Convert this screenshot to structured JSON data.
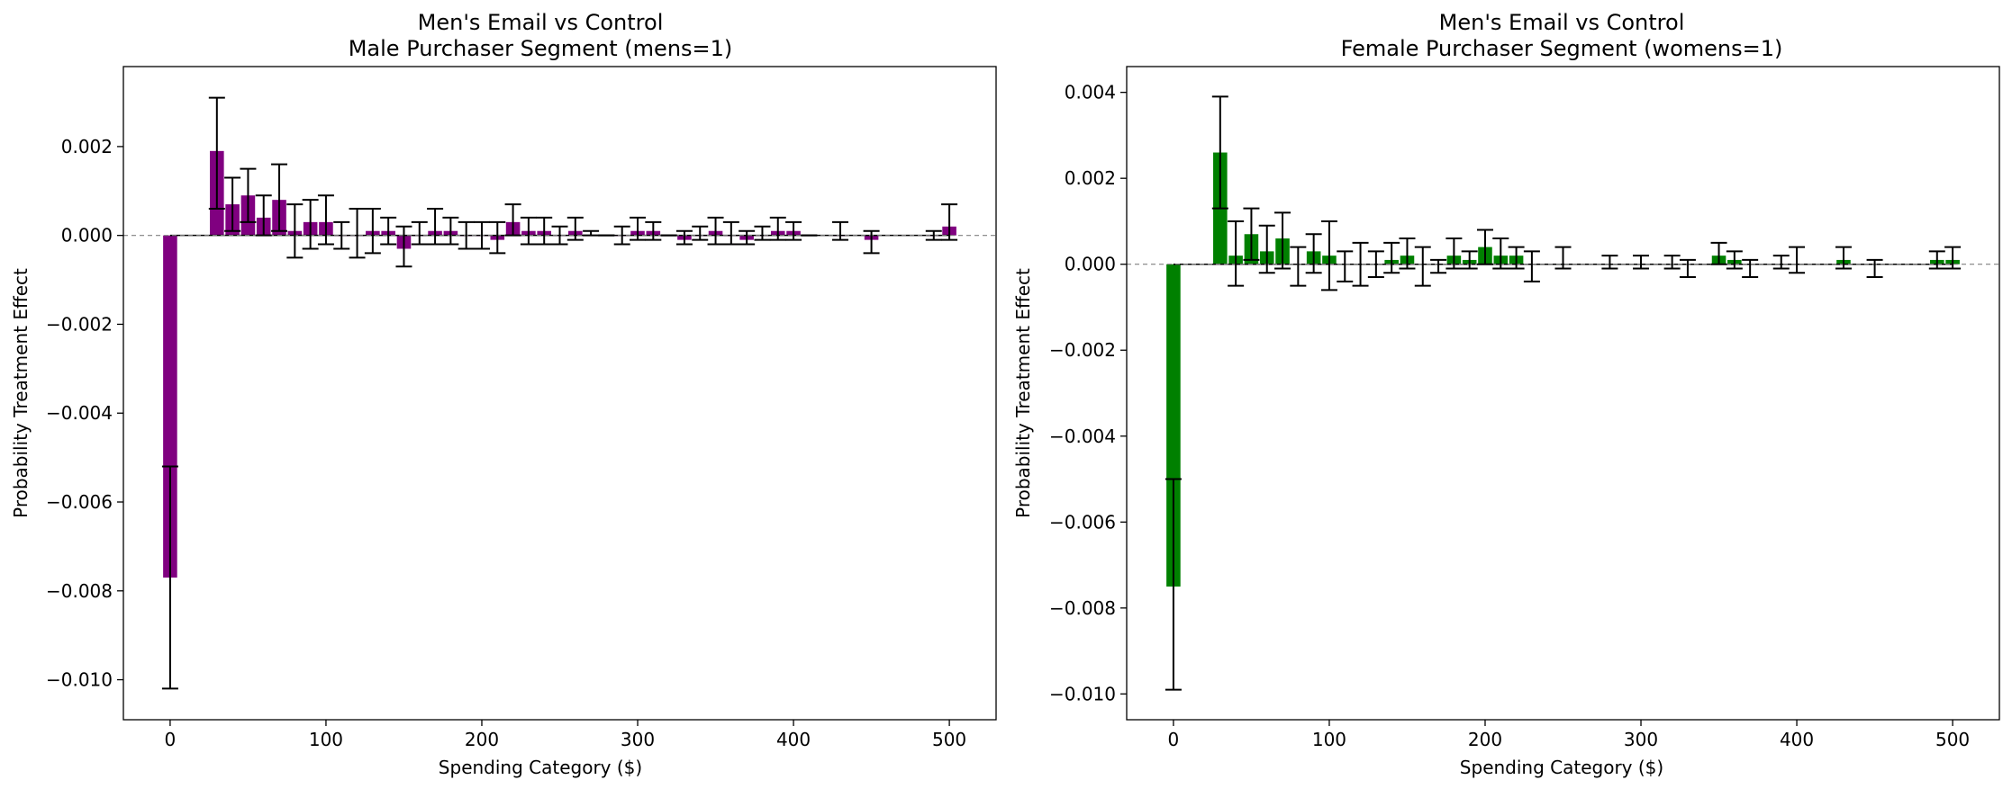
{
  "figure": {
    "background": "#ffffff"
  },
  "chart_data": [
    {
      "type": "bar",
      "title": "Men's Email vs Control",
      "subtitle": "Male Purchaser Segment (mens=1)",
      "xlabel": "Spending Category ($)",
      "ylabel": "Probability Treatment Effect",
      "xlim": [
        -30,
        530
      ],
      "ylim": [
        -0.0109,
        0.0038
      ],
      "xticks": [
        0,
        100,
        200,
        300,
        400,
        500
      ],
      "xtick_labels": [
        "0",
        "100",
        "200",
        "300",
        "400",
        "500"
      ],
      "yticks": [
        -0.01,
        -0.008,
        -0.006,
        -0.004,
        -0.002,
        0.0,
        0.002
      ],
      "ytick_labels": [
        "−0.010",
        "−0.008",
        "−0.006",
        "−0.004",
        "−0.002",
        "0.000",
        "0.002"
      ],
      "bar_width": 9,
      "color": "#800080",
      "zero_line": true,
      "x": [
        0,
        30,
        40,
        50,
        60,
        70,
        80,
        90,
        100,
        110,
        120,
        130,
        140,
        150,
        160,
        170,
        180,
        190,
        200,
        210,
        220,
        230,
        240,
        250,
        260,
        270,
        280,
        290,
        300,
        310,
        320,
        330,
        340,
        350,
        360,
        370,
        380,
        390,
        400,
        410,
        430,
        450,
        490,
        500
      ],
      "values": [
        -0.0077,
        0.0019,
        0.0007,
        0.0009,
        0.0004,
        0.0008,
        0.0001,
        0.0003,
        0.0003,
        0.0,
        0.0,
        0.0001,
        0.0001,
        -0.0003,
        0.0,
        0.0001,
        0.0001,
        0.0,
        0.0,
        -0.0001,
        0.0003,
        0.0001,
        0.0001,
        0.0,
        0.0001,
        0.0,
        0.0,
        0.0,
        0.0001,
        0.0001,
        0.0,
        -0.0001,
        0.0,
        0.0001,
        0.0,
        -0.0001,
        0.0,
        0.0001,
        0.0001,
        0.0,
        0.0,
        -0.0001,
        0.0,
        0.0002
      ],
      "error_low": [
        -0.0102,
        0.0006,
        0.0001,
        0.0003,
        0.0,
        0.0001,
        -0.0005,
        -0.0003,
        -0.0002,
        -0.0003,
        -0.0005,
        -0.0004,
        -0.0002,
        -0.0007,
        -0.0002,
        -0.0002,
        -0.0002,
        -0.0003,
        -0.0003,
        -0.0004,
        0.0,
        -0.0002,
        -0.0002,
        -0.0002,
        -0.0001,
        0.0,
        0.0,
        -0.0002,
        -0.0001,
        -0.0001,
        0.0,
        -0.0002,
        -0.0001,
        -0.0002,
        -0.0002,
        -0.0002,
        -0.0001,
        -0.0001,
        -0.0001,
        0.0,
        -0.0001,
        -0.0004,
        -0.0001,
        -0.0001
      ],
      "error_high": [
        -0.0052,
        0.0031,
        0.0013,
        0.0015,
        0.0009,
        0.0016,
        0.0007,
        0.0008,
        0.0009,
        0.0003,
        0.0006,
        0.0006,
        0.0004,
        0.0002,
        0.0003,
        0.0006,
        0.0004,
        0.0003,
        0.0003,
        0.0003,
        0.0007,
        0.0004,
        0.0004,
        0.0002,
        0.0004,
        0.0001,
        0.0,
        0.0002,
        0.0004,
        0.0003,
        0.0,
        0.0001,
        0.0002,
        0.0004,
        0.0003,
        0.0001,
        0.0002,
        0.0004,
        0.0003,
        0.0,
        0.0003,
        0.0001,
        0.0001,
        0.0007
      ]
    },
    {
      "type": "bar",
      "title": "Men's Email vs Control",
      "subtitle": "Female Purchaser Segment (womens=1)",
      "xlabel": "Spending Category ($)",
      "ylabel": "Probability Treatment Effect",
      "xlim": [
        -30,
        530
      ],
      "ylim": [
        -0.0106,
        0.0046
      ],
      "xticks": [
        0,
        100,
        200,
        300,
        400,
        500
      ],
      "xtick_labels": [
        "0",
        "100",
        "200",
        "300",
        "400",
        "500"
      ],
      "yticks": [
        -0.01,
        -0.008,
        -0.006,
        -0.004,
        -0.002,
        0.0,
        0.002,
        0.004
      ],
      "ytick_labels": [
        "−0.010",
        "−0.008",
        "−0.006",
        "−0.004",
        "−0.002",
        "0.000",
        "0.002",
        "0.004"
      ],
      "bar_width": 9,
      "color": "#008000",
      "zero_line": true,
      "x": [
        0,
        30,
        40,
        50,
        60,
        70,
        80,
        90,
        100,
        110,
        120,
        130,
        140,
        150,
        160,
        170,
        180,
        190,
        200,
        210,
        220,
        230,
        250,
        280,
        300,
        320,
        330,
        350,
        360,
        370,
        390,
        400,
        430,
        450,
        490,
        500
      ],
      "values": [
        -0.0075,
        0.0026,
        0.0002,
        0.0007,
        0.0003,
        0.0006,
        0.0,
        0.0003,
        0.0002,
        0.0,
        0.0,
        0.0,
        0.0001,
        0.0002,
        0.0,
        0.0,
        0.0002,
        0.0001,
        0.0004,
        0.0002,
        0.0002,
        0.0,
        0.0,
        0.0,
        0.0,
        0.0,
        0.0,
        0.0002,
        0.0001,
        0.0,
        0.0,
        0.0,
        0.0001,
        0.0,
        0.0001,
        0.0001
      ],
      "error_low": [
        -0.0099,
        0.0013,
        -0.0005,
        0.0001,
        -0.0002,
        -0.0001,
        -0.0005,
        -0.0002,
        -0.0006,
        -0.0004,
        -0.0005,
        -0.0003,
        -0.0002,
        -0.0001,
        -0.0005,
        -0.0002,
        -0.0001,
        -0.0001,
        0.0,
        -0.0001,
        -0.0001,
        -0.0004,
        -0.0001,
        -0.0001,
        -0.0001,
        -0.0001,
        -0.0003,
        0.0,
        -0.0001,
        -0.0003,
        -0.0001,
        -0.0002,
        -0.0001,
        -0.0003,
        -0.0001,
        -0.0001
      ],
      "error_high": [
        -0.005,
        0.0039,
        0.001,
        0.0013,
        0.0009,
        0.0012,
        0.0004,
        0.0007,
        0.001,
        0.0003,
        0.0005,
        0.0003,
        0.0005,
        0.0006,
        0.0004,
        0.0001,
        0.0006,
        0.0003,
        0.0008,
        0.0006,
        0.0004,
        0.0003,
        0.0004,
        0.0002,
        0.0002,
        0.0002,
        0.0001,
        0.0005,
        0.0003,
        0.0001,
        0.0002,
        0.0004,
        0.0004,
        0.0001,
        0.0003,
        0.0004
      ]
    }
  ]
}
